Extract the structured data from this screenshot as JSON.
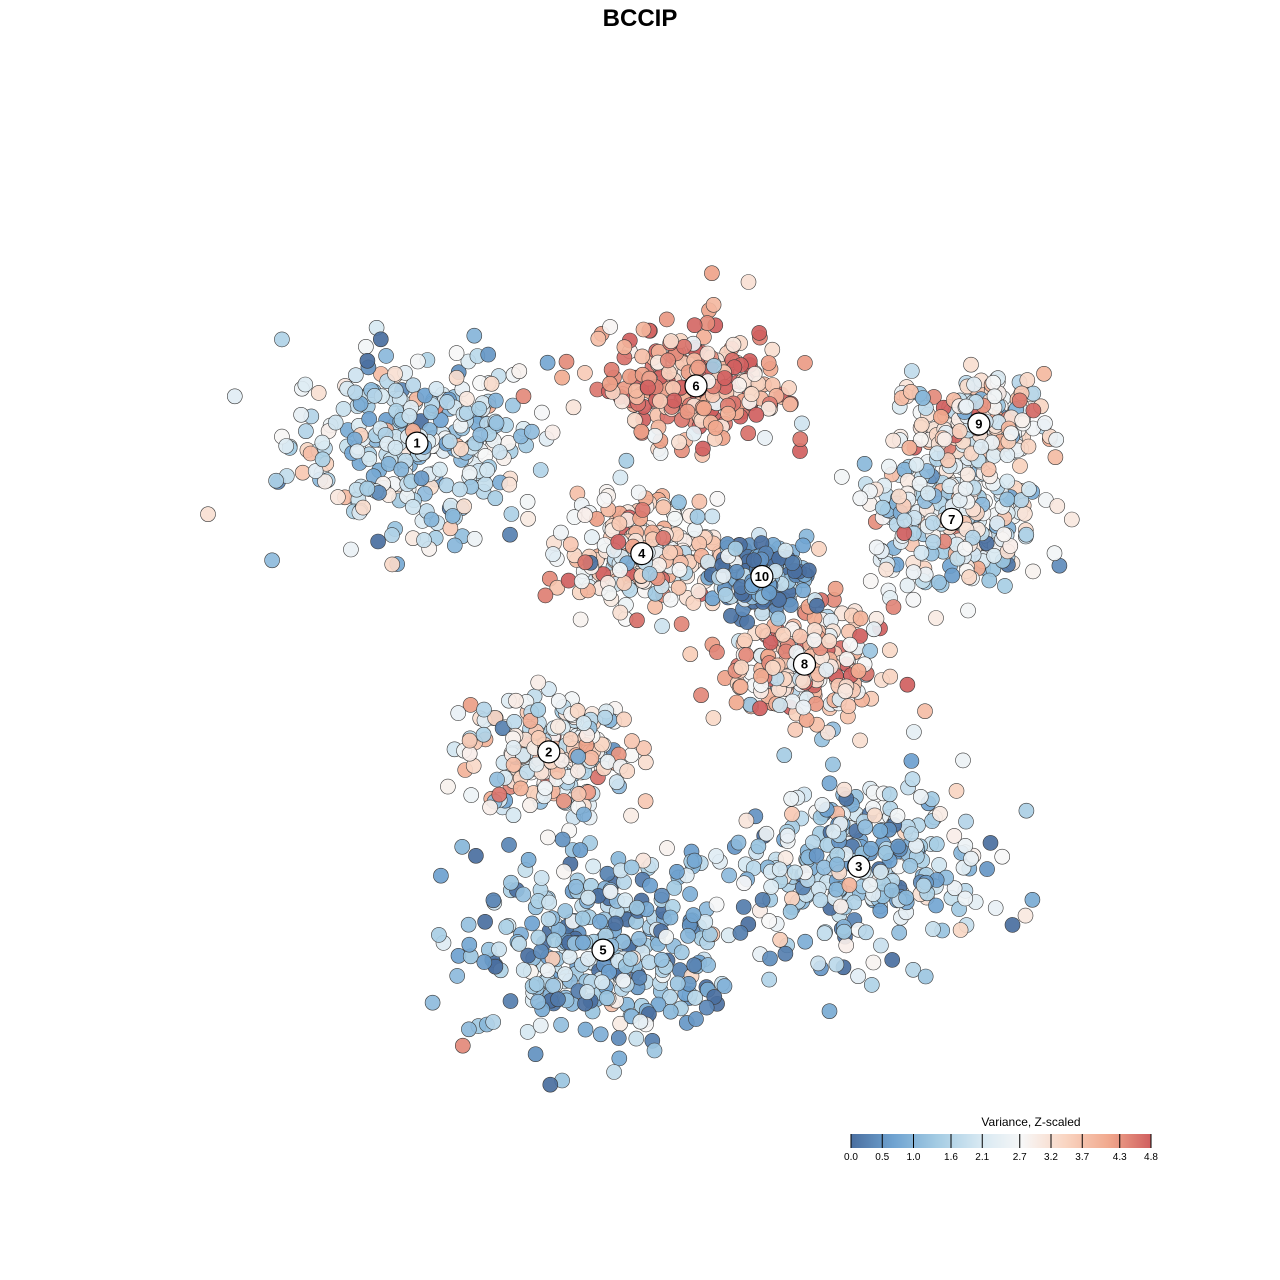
{
  "chart_data": {
    "type": "scatter",
    "title": "BCCIP",
    "legend": {
      "title": "Variance, Z-scaled",
      "placement": "bottom-right",
      "ticks": [
        "0.0",
        "0.5",
        "1.0",
        "1.6",
        "2.1",
        "2.7",
        "3.2",
        "3.7",
        "4.3",
        "4.8"
      ],
      "range": [
        0.0,
        4.8
      ],
      "colors": [
        "#4a6fa0",
        "#6fa3d1",
        "#a3cbe3",
        "#d6e8f2",
        "#f7f7f7",
        "#f9d5c2",
        "#f1a98e",
        "#d05f5f"
      ]
    },
    "clusters": [
      {
        "label": "1",
        "x": -6.4,
        "y": 5.1,
        "spread": 2.2,
        "value": 1.9
      },
      {
        "label": "2",
        "x": -3.0,
        "y": -3.0,
        "spread": 1.4,
        "value": 2.6
      },
      {
        "label": "3",
        "x": 5.0,
        "y": -6.0,
        "spread": 2.2,
        "value": 1.5
      },
      {
        "label": "4",
        "x": -0.6,
        "y": 2.2,
        "spread": 1.3,
        "value": 3.0
      },
      {
        "label": "5",
        "x": -1.6,
        "y": -8.2,
        "spread": 2.3,
        "value": 1.2
      },
      {
        "label": "6",
        "x": 0.8,
        "y": 6.6,
        "spread": 1.5,
        "value": 4.1
      },
      {
        "label": "7",
        "x": 7.4,
        "y": 3.1,
        "spread": 1.6,
        "value": 2.2
      },
      {
        "label": "8",
        "x": 3.6,
        "y": -0.7,
        "spread": 1.3,
        "value": 3.4
      },
      {
        "label": "9",
        "x": 8.1,
        "y": 5.6,
        "spread": 1.1,
        "value": 2.8
      },
      {
        "label": "10",
        "x": 2.5,
        "y": 1.6,
        "spread": 0.8,
        "value": 0.7
      }
    ],
    "xlim": [
      -12,
      12
    ],
    "ylim": [
      -12,
      12
    ]
  }
}
